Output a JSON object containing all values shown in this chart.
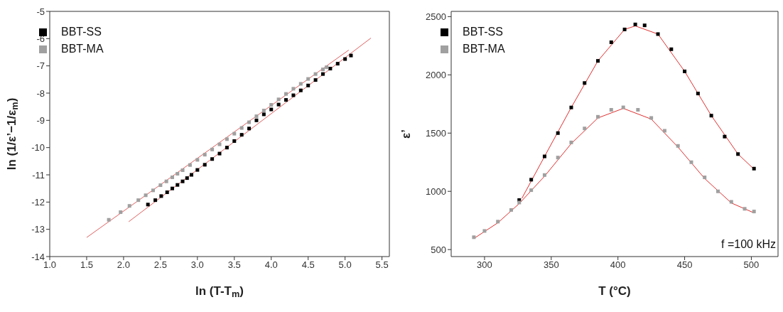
{
  "chart_data": [
    {
      "type": "scatter",
      "xlabel": "ln (T-T$_{m}$)",
      "ylabel": "ln (1/ε’−1/ε$_{m}$)",
      "xlim": [
        1.0,
        5.6
      ],
      "ylim": [
        -14,
        -5
      ],
      "xticks": [
        {
          "value": 1,
          "label": "1.0"
        },
        1.5,
        {
          "value": 2,
          "label": "2.0"
        },
        2.5,
        {
          "value": 3,
          "label": "3.0"
        },
        3.5,
        {
          "value": 4,
          "label": "4.0"
        },
        4.5,
        {
          "value": 5,
          "label": "5.0"
        },
        5.5
      ],
      "yticks": [
        -14,
        -13,
        -12,
        -11,
        -10,
        -9,
        -8,
        -7,
        -6,
        -5
      ],
      "legend": "top left",
      "series": [
        {
          "name": "BBT-SS",
          "color": "#000000",
          "marker": "square",
          "x": [
            2.33,
            2.43,
            2.51,
            2.59,
            2.66,
            2.73,
            2.8,
            2.86,
            2.92,
            3.0,
            3.1,
            3.2,
            3.3,
            3.4,
            3.5,
            3.6,
            3.7,
            3.8,
            3.9,
            4.0,
            4.1,
            4.2,
            4.3,
            4.4,
            4.5,
            4.6,
            4.7,
            4.8,
            4.9,
            5.0,
            5.08
          ],
          "values": [
            -12.09,
            -11.93,
            -11.78,
            -11.64,
            -11.5,
            -11.37,
            -11.24,
            -11.12,
            -11.0,
            -10.82,
            -10.63,
            -10.42,
            -10.22,
            -10.0,
            -9.76,
            -9.53,
            -9.3,
            -9.0,
            -8.78,
            -8.6,
            -8.42,
            -8.25,
            -8.08,
            -7.9,
            -7.72,
            -7.52,
            -7.3,
            -7.1,
            -6.92,
            -6.75,
            -6.62
          ]
        },
        {
          "name": "BBT-MA",
          "color": "#a0a0a0",
          "marker": "square",
          "x": [
            1.8,
            1.96,
            2.08,
            2.2,
            2.3,
            2.4,
            2.5,
            2.58,
            2.66,
            2.73,
            2.8,
            2.9,
            3.0,
            3.1,
            3.2,
            3.3,
            3.4,
            3.5,
            3.6,
            3.7,
            3.8,
            3.9,
            4.0,
            4.1,
            4.2,
            4.3,
            4.4,
            4.5,
            4.6,
            4.7,
            4.75
          ],
          "values": [
            -12.65,
            -12.37,
            -12.14,
            -11.93,
            -11.75,
            -11.57,
            -11.38,
            -11.24,
            -11.09,
            -10.96,
            -10.83,
            -10.64,
            -10.45,
            -10.26,
            -10.07,
            -9.88,
            -9.69,
            -9.49,
            -9.28,
            -9.07,
            -8.85,
            -8.64,
            -8.43,
            -8.23,
            -8.03,
            -7.84,
            -7.66,
            -7.48,
            -7.3,
            -7.13,
            -7.05
          ]
        },
        {
          "type": "line",
          "marker": "none",
          "color": "#e06060",
          "x": [
            1.5,
            5.05
          ],
          "values": [
            -13.3,
            -6.42
          ]
        },
        {
          "type": "line",
          "marker": "none",
          "color": "#e06060",
          "x": [
            2.07,
            5.35
          ],
          "values": [
            -12.72,
            -5.98
          ]
        }
      ]
    },
    {
      "type": "scatter",
      "xlabel": "T (°C)",
      "ylabel": "ε’",
      "xlim": [
        275,
        520
      ],
      "ylim": [
        440,
        2545
      ],
      "xticks": [
        300,
        350,
        400,
        450,
        500
      ],
      "yticks": [
        500,
        1000,
        1500,
        2000,
        2500
      ],
      "legend": "top left",
      "annotations": [
        "f =100 kHz"
      ],
      "series": [
        {
          "name": "BBT-SS",
          "color": "#000000",
          "marker": "square",
          "x": [
            326,
            335,
            345,
            355,
            365,
            375,
            385,
            395,
            405,
            413,
            420,
            430,
            440,
            450,
            460,
            470,
            480,
            490,
            502
          ],
          "values": [
            925,
            1100,
            1300,
            1500,
            1720,
            1930,
            2120,
            2280,
            2390,
            2433,
            2425,
            2350,
            2220,
            2030,
            1840,
            1650,
            1470,
            1320,
            1195
          ]
        },
        {
          "name": "BBT-MA",
          "color": "#a0a0a0",
          "marker": "square",
          "x": [
            292,
            300,
            310,
            320,
            326,
            335,
            345,
            355,
            365,
            375,
            385,
            395,
            404,
            415,
            425,
            435,
            445,
            455,
            465,
            475,
            485,
            495,
            502
          ],
          "values": [
            606,
            660,
            740,
            840,
            904,
            1010,
            1140,
            1290,
            1420,
            1540,
            1640,
            1700,
            1721,
            1700,
            1630,
            1520,
            1390,
            1250,
            1120,
            1000,
            910,
            850,
            827
          ]
        },
        {
          "type": "line",
          "marker": "none",
          "color": "#e03030",
          "x": [
            328,
            345,
            365,
            385,
            405,
            413,
            430,
            450,
            470,
            490,
            502
          ],
          "values": [
            940,
            1300,
            1720,
            2120,
            2390,
            2420,
            2350,
            2030,
            1650,
            1320,
            1190
          ]
        },
        {
          "type": "line",
          "marker": "none",
          "color": "#e03030",
          "x": [
            292,
            310,
            326,
            345,
            365,
            385,
            404,
            425,
            445,
            465,
            485,
            502
          ],
          "values": [
            595,
            730,
            895,
            1130,
            1410,
            1630,
            1712,
            1620,
            1380,
            1110,
            900,
            815
          ]
        }
      ]
    }
  ]
}
